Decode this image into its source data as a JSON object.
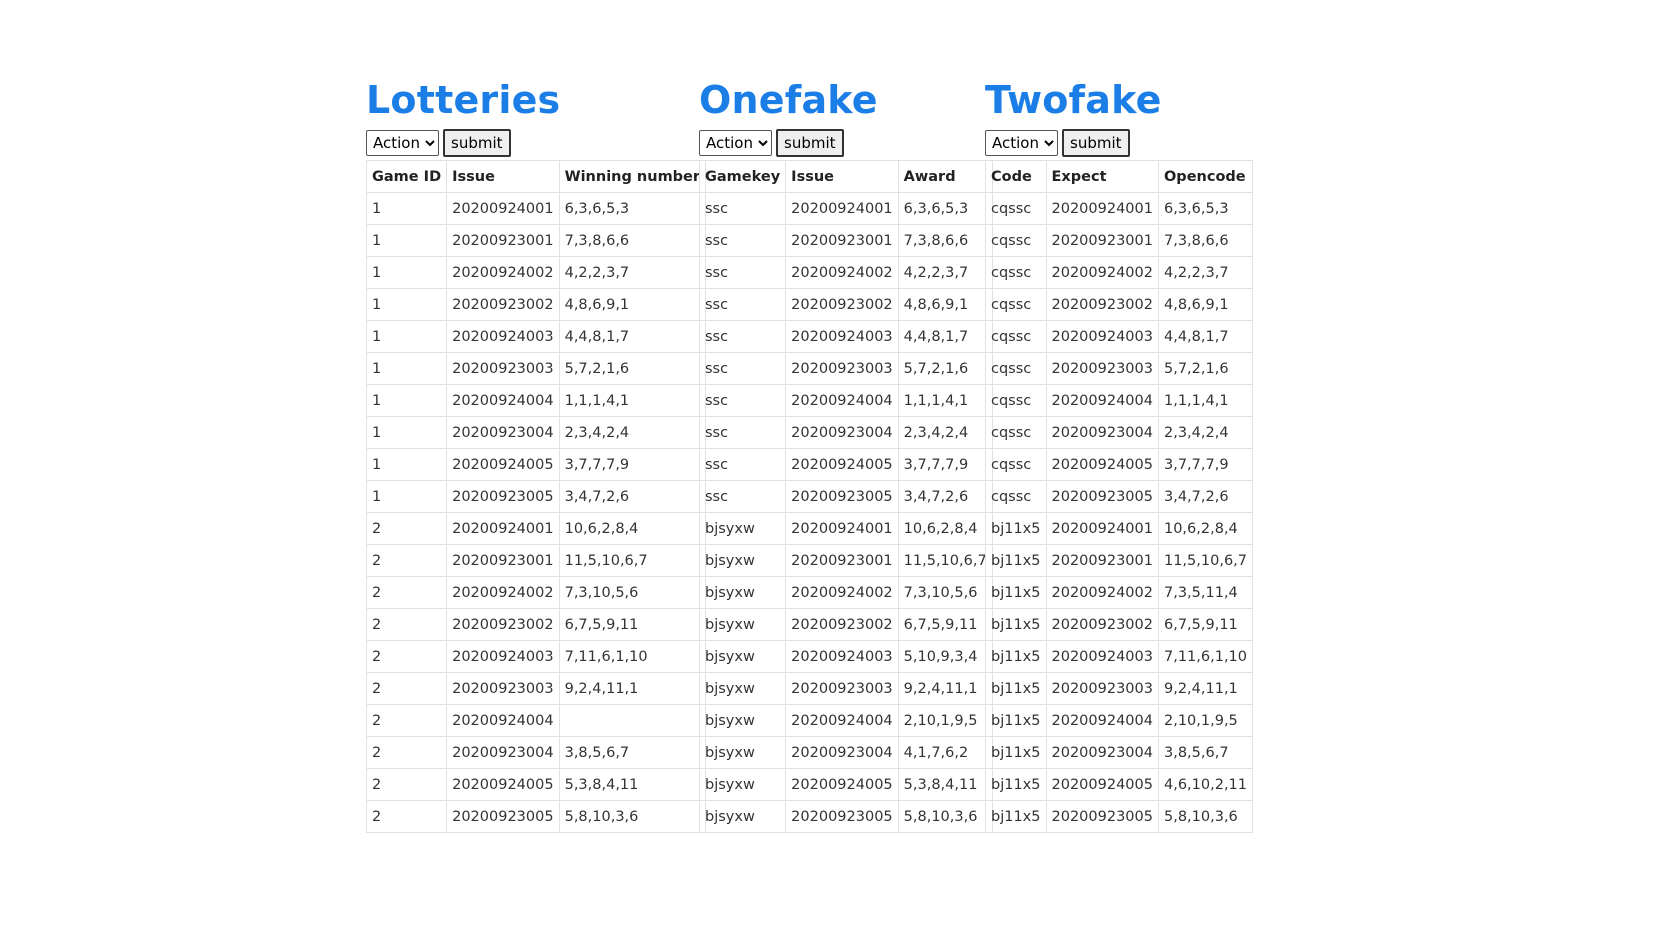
{
  "panels": [
    {
      "title": "Lotteries",
      "action_label": "Action",
      "submit_label": "submit",
      "columns": [
        "Game ID",
        "Issue",
        "Winning number"
      ],
      "rows": [
        [
          "1",
          "20200924001",
          "6,3,6,5,3"
        ],
        [
          "1",
          "20200923001",
          "7,3,8,6,6"
        ],
        [
          "1",
          "20200924002",
          "4,2,2,3,7"
        ],
        [
          "1",
          "20200923002",
          "4,8,6,9,1"
        ],
        [
          "1",
          "20200924003",
          "4,4,8,1,7"
        ],
        [
          "1",
          "20200923003",
          "5,7,2,1,6"
        ],
        [
          "1",
          "20200924004",
          "1,1,1,4,1"
        ],
        [
          "1",
          "20200923004",
          "2,3,4,2,4"
        ],
        [
          "1",
          "20200924005",
          "3,7,7,7,9"
        ],
        [
          "1",
          "20200923005",
          "3,4,7,2,6"
        ],
        [
          "2",
          "20200924001",
          "10,6,2,8,4"
        ],
        [
          "2",
          "20200923001",
          "11,5,10,6,7"
        ],
        [
          "2",
          "20200924002",
          "7,3,10,5,6"
        ],
        [
          "2",
          "20200923002",
          "6,7,5,9,11"
        ],
        [
          "2",
          "20200924003",
          "7,11,6,1,10"
        ],
        [
          "2",
          "20200923003",
          "9,2,4,11,1"
        ],
        [
          "2",
          "20200924004",
          ""
        ],
        [
          "2",
          "20200923004",
          "3,8,5,6,7"
        ],
        [
          "2",
          "20200924005",
          "5,3,8,4,11"
        ],
        [
          "2",
          "20200923005",
          "5,8,10,3,6"
        ]
      ]
    },
    {
      "title": "Onefake",
      "action_label": "Action",
      "submit_label": "submit",
      "columns": [
        "Gamekey",
        "Issue",
        "Award"
      ],
      "rows": [
        [
          "ssc",
          "20200924001",
          "6,3,6,5,3"
        ],
        [
          "ssc",
          "20200923001",
          "7,3,8,6,6"
        ],
        [
          "ssc",
          "20200924002",
          "4,2,2,3,7"
        ],
        [
          "ssc",
          "20200923002",
          "4,8,6,9,1"
        ],
        [
          "ssc",
          "20200924003",
          "4,4,8,1,7"
        ],
        [
          "ssc",
          "20200923003",
          "5,7,2,1,6"
        ],
        [
          "ssc",
          "20200924004",
          "1,1,1,4,1"
        ],
        [
          "ssc",
          "20200923004",
          "2,3,4,2,4"
        ],
        [
          "ssc",
          "20200924005",
          "3,7,7,7,9"
        ],
        [
          "ssc",
          "20200923005",
          "3,4,7,2,6"
        ],
        [
          "bjsyxw",
          "20200924001",
          "10,6,2,8,4"
        ],
        [
          "bjsyxw",
          "20200923001",
          "11,5,10,6,7"
        ],
        [
          "bjsyxw",
          "20200924002",
          "7,3,10,5,6"
        ],
        [
          "bjsyxw",
          "20200923002",
          "6,7,5,9,11"
        ],
        [
          "bjsyxw",
          "20200924003",
          "5,10,9,3,4"
        ],
        [
          "bjsyxw",
          "20200923003",
          "9,2,4,11,1"
        ],
        [
          "bjsyxw",
          "20200924004",
          "2,10,1,9,5"
        ],
        [
          "bjsyxw",
          "20200923004",
          "4,1,7,6,2"
        ],
        [
          "bjsyxw",
          "20200924005",
          "5,3,8,4,11"
        ],
        [
          "bjsyxw",
          "20200923005",
          "5,8,10,3,6"
        ]
      ]
    },
    {
      "title": "Twofake",
      "action_label": "Action",
      "submit_label": "submit",
      "columns": [
        "Code",
        "Expect",
        "Opencode"
      ],
      "rows": [
        [
          "cqssc",
          "20200924001",
          "6,3,6,5,3"
        ],
        [
          "cqssc",
          "20200923001",
          "7,3,8,6,6"
        ],
        [
          "cqssc",
          "20200924002",
          "4,2,2,3,7"
        ],
        [
          "cqssc",
          "20200923002",
          "4,8,6,9,1"
        ],
        [
          "cqssc",
          "20200924003",
          "4,4,8,1,7"
        ],
        [
          "cqssc",
          "20200923003",
          "5,7,2,1,6"
        ],
        [
          "cqssc",
          "20200924004",
          "1,1,1,4,1"
        ],
        [
          "cqssc",
          "20200923004",
          "2,3,4,2,4"
        ],
        [
          "cqssc",
          "20200924005",
          "3,7,7,7,9"
        ],
        [
          "cqssc",
          "20200923005",
          "3,4,7,2,6"
        ],
        [
          "bj11x5",
          "20200924001",
          "10,6,2,8,4"
        ],
        [
          "bj11x5",
          "20200923001",
          "11,5,10,6,7"
        ],
        [
          "bj11x5",
          "20200924002",
          "7,3,5,11,4"
        ],
        [
          "bj11x5",
          "20200923002",
          "6,7,5,9,11"
        ],
        [
          "bj11x5",
          "20200924003",
          "7,11,6,1,10"
        ],
        [
          "bj11x5",
          "20200923003",
          "9,2,4,11,1"
        ],
        [
          "bj11x5",
          "20200924004",
          "2,10,1,9,5"
        ],
        [
          "bj11x5",
          "20200923004",
          "3,8,5,6,7"
        ],
        [
          "bj11x5",
          "20200924005",
          "4,6,10,2,11"
        ],
        [
          "bj11x5",
          "20200923005",
          "5,8,10,3,6"
        ]
      ]
    }
  ]
}
